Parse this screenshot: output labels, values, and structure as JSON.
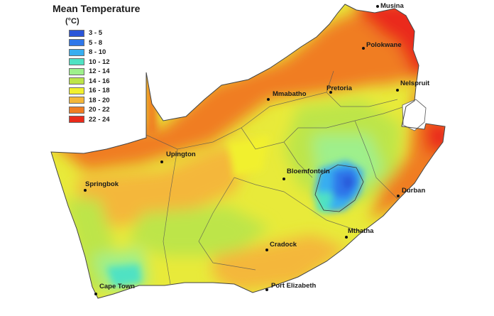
{
  "legend": {
    "title": "Mean Temperature",
    "unit": "(°C)",
    "classes": [
      {
        "label": "3 - 5",
        "color": "#2a55d8"
      },
      {
        "label": "5 - 8",
        "color": "#2f77ea"
      },
      {
        "label": "8 - 10",
        "color": "#38aef0"
      },
      {
        "label": "10 - 12",
        "color": "#4fe2c3"
      },
      {
        "label": "12 - 14",
        "color": "#9ef08c"
      },
      {
        "label": "14 - 16",
        "color": "#bde54a"
      },
      {
        "label": "16 - 18",
        "color": "#f1f02e"
      },
      {
        "label": "18 - 20",
        "color": "#f4b73a"
      },
      {
        "label": "20 - 22",
        "color": "#f07d22"
      },
      {
        "label": "22 - 24",
        "color": "#ea2a1a"
      }
    ]
  },
  "cities": [
    {
      "name": "Musina"
    },
    {
      "name": "Polokwane"
    },
    {
      "name": "Nelspruit"
    },
    {
      "name": "Pretoria"
    },
    {
      "name": "Mmabatho"
    },
    {
      "name": "Upington"
    },
    {
      "name": "Springbok"
    },
    {
      "name": "Bloemfontein"
    },
    {
      "name": "Durban"
    },
    {
      "name": "Mthatha"
    },
    {
      "name": "Cradock"
    },
    {
      "name": "Cape Town"
    },
    {
      "name": "Port Elizabeth"
    }
  ]
}
